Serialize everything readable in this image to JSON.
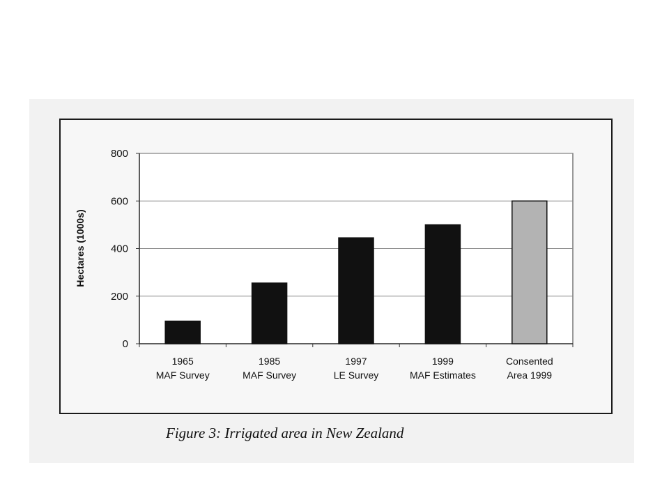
{
  "caption": "Figure 3: Irrigated area in New Zealand",
  "chart_data": {
    "type": "bar",
    "ylabel": "Hectares (1000s)",
    "ylim": [
      0,
      800
    ],
    "yticks": [
      0,
      200,
      400,
      600,
      800
    ],
    "grid": true,
    "categories": [
      [
        "1965",
        "MAF Survey"
      ],
      [
        "1985",
        "MAF Survey"
      ],
      [
        "1997",
        "LE Survey"
      ],
      [
        "1999",
        "MAF Estimates"
      ],
      [
        "Consented",
        "Area 1999"
      ]
    ],
    "values": [
      95,
      255,
      445,
      500,
      600
    ],
    "colors": [
      "#111111",
      "#111111",
      "#111111",
      "#111111",
      "#b3b3b3"
    ]
  }
}
